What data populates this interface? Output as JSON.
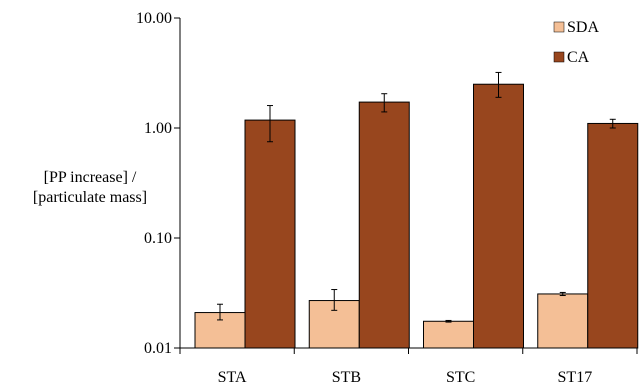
{
  "chart_data": {
    "type": "bar",
    "y_scale": "log",
    "ylim": [
      0.01,
      10
    ],
    "ylabel_lines": [
      "[PP increase] /",
      "[particulate mass]"
    ],
    "yticks": [
      {
        "value": 0.01,
        "label": "0.01"
      },
      {
        "value": 0.1,
        "label": "0.10"
      },
      {
        "value": 1,
        "label": "1.00"
      },
      {
        "value": 10,
        "label": "10.00"
      }
    ],
    "categories": [
      "STA",
      "STB",
      "STC",
      "ST17"
    ],
    "series": [
      {
        "name": "SDA",
        "color": "#f4bf96",
        "values": [
          0.021,
          0.027,
          0.0175,
          0.031
        ],
        "err_low": [
          0.018,
          0.022,
          0.0172,
          0.03
        ],
        "err_high": [
          0.025,
          0.034,
          0.0178,
          0.032
        ]
      },
      {
        "name": "CA",
        "color": "#98461e",
        "values": [
          1.18,
          1.72,
          2.5,
          1.1
        ],
        "err_low": [
          0.75,
          1.4,
          1.9,
          1.0
        ],
        "err_high": [
          1.6,
          2.05,
          3.2,
          1.2
        ]
      }
    ],
    "legend_position": "top-right",
    "grid": false
  }
}
